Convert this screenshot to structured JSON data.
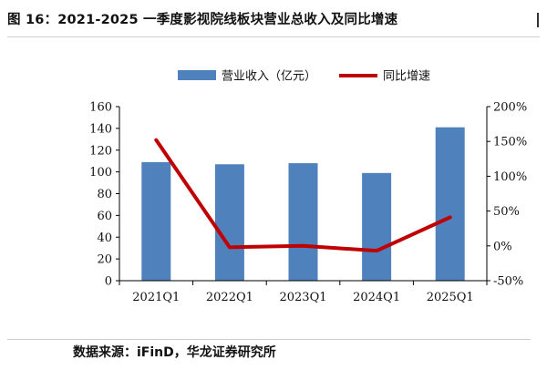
{
  "title": "图 16：2021-2025 一季度影视院线板块营业总收入及同比增速",
  "source": "数据来源：iFinD，华龙证券研究所",
  "chart_data": {
    "type": "bar",
    "categories": [
      "2021Q1",
      "2022Q1",
      "2023Q1",
      "2024Q1",
      "2025Q1"
    ],
    "series": [
      {
        "name": "营业收入（亿元）",
        "type": "bar",
        "axis": "left",
        "color": "#4F81BD",
        "values": [
          109,
          107,
          108,
          99,
          141
        ]
      },
      {
        "name": "同比增速",
        "type": "line",
        "axis": "right",
        "color": "#C00000",
        "values": [
          152,
          -2,
          0,
          -7,
          41
        ]
      }
    ],
    "y_left": {
      "min": 0,
      "max": 160,
      "step": 20,
      "ticks": [
        "0",
        "20",
        "40",
        "60",
        "80",
        "100",
        "120",
        "140",
        "160"
      ]
    },
    "y_right": {
      "min": -50,
      "max": 200,
      "step": 50,
      "ticks": [
        "-50%",
        "0%",
        "50%",
        "100%",
        "150%",
        "200%"
      ]
    },
    "grid": false,
    "legend": "top"
  }
}
